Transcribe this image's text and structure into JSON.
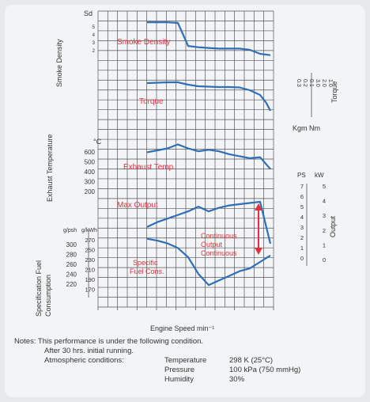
{
  "chart_data": {
    "type": "line",
    "xlabel": "Engine Speed min⁻¹",
    "series": [
      {
        "name": "Smoke Density",
        "x": [
          0,
          1,
          2,
          3,
          4,
          5,
          6,
          7,
          8,
          9,
          10,
          11,
          12
        ],
        "y": [
          6.0,
          6.0,
          6.0,
          5.9,
          2.4,
          2.2,
          2.1,
          2.0,
          2.0,
          2.0,
          1.8,
          1.2,
          1.0
        ]
      },
      {
        "name": "Torque",
        "x": [
          0,
          1,
          2,
          3,
          4,
          5,
          6,
          7,
          8,
          9,
          10,
          11,
          11.6,
          12
        ],
        "y": [
          9.0,
          9.1,
          9.2,
          9.2,
          8.6,
          8.2,
          8.1,
          8.0,
          8.0,
          7.9,
          7.2,
          6.0,
          4.0,
          2.0
        ]
      },
      {
        "name": "Exhaust Temp.",
        "x": [
          0,
          1,
          2,
          3,
          4,
          5,
          6,
          7,
          8,
          9,
          10,
          11,
          12
        ],
        "y": [
          550,
          570,
          590,
          630,
          590,
          560,
          575,
          560,
          530,
          510,
          490,
          500,
          380
        ]
      },
      {
        "name": "Max Output",
        "x": [
          0,
          1,
          2,
          3,
          4,
          5,
          6,
          7,
          8,
          9,
          10,
          11,
          12
        ],
        "y": [
          2.2,
          2.6,
          2.9,
          3.2,
          3.5,
          3.9,
          3.5,
          3.8,
          4.0,
          4.1,
          4.2,
          4.3,
          0.8
        ]
      },
      {
        "name": "Specific Fuel Cons.",
        "x": [
          0,
          1,
          2,
          3,
          4,
          5,
          6,
          7,
          8,
          9,
          10,
          11,
          12
        ],
        "y": [
          290,
          288,
          285,
          280,
          270,
          252,
          240,
          245,
          250,
          255,
          258,
          265,
          272
        ]
      }
    ]
  },
  "labels": {
    "sd_unit": "Sd",
    "smoke_density_axis": "Smoke Density",
    "smoke_density_curve": "Smoke Density",
    "torque_curve": "Torque",
    "torque_axis": "Torque",
    "torque_unit": "Kgm  Nm",
    "exhaust_axis": "Exhaust Temperature",
    "exhaust_unit": "°C",
    "exhaust_curve": "Exhaust Temp.",
    "max_output_curve": "Max Output",
    "continuous_1": "Continuous",
    "continuous_2": "Output",
    "continuous_3": "Continuous",
    "sfc_curve_1": "Specific",
    "sfc_curve_2": "Fuel Cons.",
    "sfc_axis_1": "Specification Fuel",
    "sfc_axis_2": "Consumption",
    "sfc_unit_left": "g/psh",
    "sfc_unit_right": "g/kWh",
    "output_axis": "Output",
    "ps_unit": "PS",
    "kw_unit": "kW"
  },
  "axes": {
    "exhaust_ticks": [
      "600",
      "500",
      "400",
      "300",
      "200"
    ],
    "sfc_gpsh_ticks": [
      "300",
      "280",
      "260",
      "240",
      "220"
    ],
    "sfc_gkwh_ticks": [
      "270",
      "250",
      "230",
      "210",
      "190",
      "170"
    ],
    "ps_ticks": [
      "7",
      "6",
      "5",
      "4",
      "3",
      "2",
      "1",
      "0"
    ],
    "kw_ticks": [
      "5",
      "4",
      "3",
      "2",
      "1",
      "0"
    ],
    "torque_kgm_ticks": [
      "0.3",
      "0.2",
      "0.1"
    ],
    "torque_nm_ticks": [
      "3.0",
      "2.0",
      "1.0"
    ],
    "smoke_ticks": [
      "5",
      "4",
      "3",
      "2"
    ]
  },
  "notes": {
    "line1": "Notes: This performance is under the following condition.",
    "line2": "After 30 hrs. initial running.",
    "line3_label": "Atmospheric conditions:",
    "temperature_key": "Temperature",
    "temperature_value": "298 K (25°C)",
    "pressure_key": "Pressure",
    "pressure_value": "100 kPa (750 mmHg)",
    "humidity_key": "Humidity",
    "humidity_value": "30%"
  },
  "colors": {
    "curve": "#2f6fb8",
    "label": "#e0323e",
    "grid": "#555555"
  }
}
